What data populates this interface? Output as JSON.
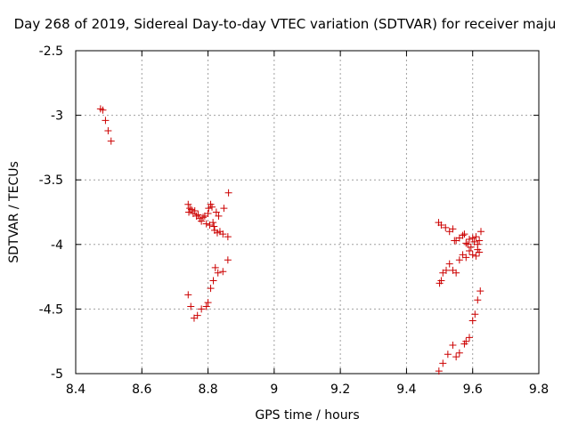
{
  "chart_data": {
    "type": "scatter",
    "title": "Day 268 of 2019, Sidereal Day-to-day VTEC variation (SDTVAR) for receiver maju",
    "xlabel": "GPS time / hours",
    "ylabel": "SDTVAR / TECUs",
    "xlim": [
      8.4,
      9.8
    ],
    "ylim": [
      -5,
      -2.5
    ],
    "x_ticks": [
      8.4,
      8.6,
      8.8,
      9.0,
      9.2,
      9.4,
      9.6,
      9.8
    ],
    "x_tick_labels": [
      "8.4",
      "8.6",
      "8.8",
      "9",
      "9.2",
      "9.4",
      "9.6",
      "9.8"
    ],
    "y_ticks": [
      -5,
      -4.5,
      -4,
      -3.5,
      -3,
      -2.5
    ],
    "y_tick_labels": [
      "-5",
      "-4.5",
      "-4",
      "-3.5",
      "-3",
      "-2.5"
    ],
    "grid": true,
    "marker": "+",
    "color": "#cc0000",
    "series": [
      {
        "name": "SDTVAR",
        "points": [
          [
            8.475,
            -2.95
          ],
          [
            8.482,
            -2.96
          ],
          [
            8.49,
            -3.04
          ],
          [
            8.498,
            -3.12
          ],
          [
            8.507,
            -3.2
          ],
          [
            8.74,
            -3.69
          ],
          [
            8.742,
            -3.75
          ],
          [
            8.745,
            -3.72
          ],
          [
            8.75,
            -3.73
          ],
          [
            8.755,
            -3.76
          ],
          [
            8.76,
            -3.74
          ],
          [
            8.765,
            -3.78
          ],
          [
            8.77,
            -3.77
          ],
          [
            8.775,
            -3.8
          ],
          [
            8.78,
            -3.82
          ],
          [
            8.785,
            -3.79
          ],
          [
            8.79,
            -3.78
          ],
          [
            8.795,
            -3.84
          ],
          [
            8.8,
            -3.76
          ],
          [
            8.802,
            -3.72
          ],
          [
            8.805,
            -3.85
          ],
          [
            8.808,
            -3.69
          ],
          [
            8.812,
            -3.71
          ],
          [
            8.815,
            -3.83
          ],
          [
            8.818,
            -3.86
          ],
          [
            8.82,
            -3.89
          ],
          [
            8.825,
            -3.75
          ],
          [
            8.828,
            -3.91
          ],
          [
            8.832,
            -3.78
          ],
          [
            8.836,
            -3.9
          ],
          [
            8.845,
            -3.92
          ],
          [
            8.848,
            -3.72
          ],
          [
            8.86,
            -3.94
          ],
          [
            8.862,
            -3.6
          ],
          [
            8.74,
            -4.39
          ],
          [
            8.748,
            -4.48
          ],
          [
            8.758,
            -4.57
          ],
          [
            8.768,
            -4.55
          ],
          [
            8.78,
            -4.5
          ],
          [
            8.795,
            -4.48
          ],
          [
            8.8,
            -4.45
          ],
          [
            8.808,
            -4.34
          ],
          [
            8.816,
            -4.28
          ],
          [
            8.822,
            -4.18
          ],
          [
            8.83,
            -4.22
          ],
          [
            8.845,
            -4.21
          ],
          [
            8.86,
            -4.12
          ],
          [
            9.497,
            -3.83
          ],
          [
            9.505,
            -3.85
          ],
          [
            9.518,
            -3.87
          ],
          [
            9.53,
            -3.9
          ],
          [
            9.54,
            -3.88
          ],
          [
            9.545,
            -3.97
          ],
          [
            9.55,
            -3.97
          ],
          [
            9.56,
            -3.95
          ],
          [
            9.57,
            -3.93
          ],
          [
            9.575,
            -3.92
          ],
          [
            9.58,
            -3.99
          ],
          [
            9.585,
            -4.0
          ],
          [
            9.59,
            -3.96
          ],
          [
            9.595,
            -4.02
          ],
          [
            9.6,
            -3.95
          ],
          [
            9.605,
            -3.98
          ],
          [
            9.61,
            -3.94
          ],
          [
            9.615,
            -4.0
          ],
          [
            9.62,
            -3.97
          ],
          [
            9.625,
            -3.9
          ],
          [
            9.5,
            -4.3
          ],
          [
            9.505,
            -4.28
          ],
          [
            9.51,
            -4.22
          ],
          [
            9.52,
            -4.2
          ],
          [
            9.53,
            -4.15
          ],
          [
            9.54,
            -4.2
          ],
          [
            9.55,
            -4.22
          ],
          [
            9.56,
            -4.12
          ],
          [
            9.57,
            -4.08
          ],
          [
            9.58,
            -4.1
          ],
          [
            9.59,
            -4.05
          ],
          [
            9.6,
            -4.08
          ],
          [
            9.61,
            -4.09
          ],
          [
            9.615,
            -4.04
          ],
          [
            9.62,
            -4.06
          ],
          [
            9.498,
            -4.98
          ],
          [
            9.51,
            -4.92
          ],
          [
            9.525,
            -4.85
          ],
          [
            9.54,
            -4.78
          ],
          [
            9.55,
            -4.87
          ],
          [
            9.56,
            -4.84
          ],
          [
            9.575,
            -4.77
          ],
          [
            9.58,
            -4.75
          ],
          [
            9.59,
            -4.72
          ],
          [
            9.6,
            -4.59
          ],
          [
            9.607,
            -4.54
          ],
          [
            9.615,
            -4.43
          ],
          [
            9.623,
            -4.36
          ]
        ]
      }
    ]
  }
}
